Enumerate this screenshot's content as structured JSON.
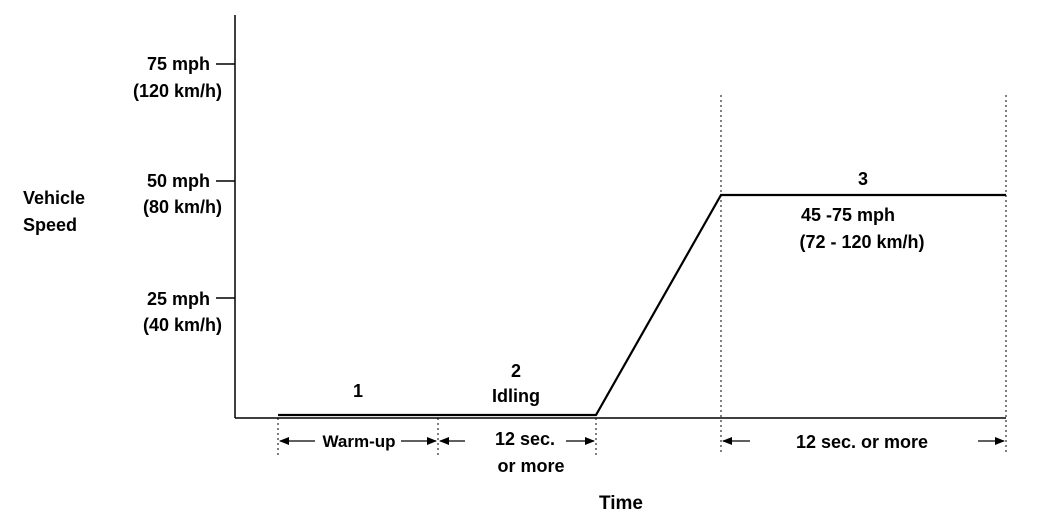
{
  "y_axis": {
    "title_line1": "Vehicle",
    "title_line2": "Speed",
    "ticks": [
      {
        "mph": "75 mph",
        "kmh": "(120 km/h)"
      },
      {
        "mph": "50 mph",
        "kmh": "(80 km/h)"
      },
      {
        "mph": "25 mph",
        "kmh": "(40 km/h)"
      }
    ]
  },
  "x_axis": {
    "title": "Time"
  },
  "phases": [
    {
      "number": "1",
      "name": "",
      "duration": "Warm-up"
    },
    {
      "number": "2",
      "name": "Idling",
      "duration_line1": "12 sec.",
      "duration_line2": "or  more"
    },
    {
      "number": "3",
      "speed_mph": "45 -75 mph",
      "speed_kmh": "(72 - 120 km/h)",
      "duration": "12 sec. or  more"
    }
  ]
}
